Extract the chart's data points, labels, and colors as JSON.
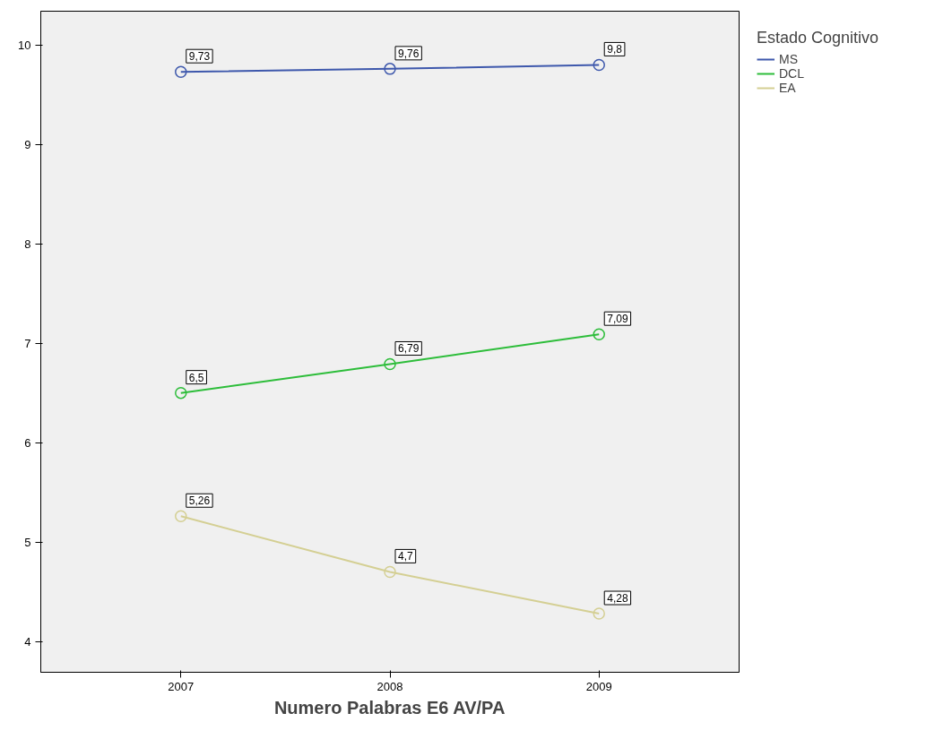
{
  "chart_data": {
    "type": "line",
    "xlabel": "Numero Palabras E6 AV/PA",
    "legend_title": "Estado Cognitivo",
    "legend": "right",
    "marker": "circle",
    "grid": false,
    "data_labels": true,
    "x": [
      2007,
      2008,
      2009
    ],
    "xlim": [
      2006.33,
      2009.67
    ],
    "xticks": [
      2007,
      2008,
      2009
    ],
    "ylim": [
      3.69,
      10.34
    ],
    "yticks": [
      4,
      5,
      6,
      7,
      8,
      9,
      10
    ],
    "series": [
      {
        "name": "MS",
        "color": "#3e58ac",
        "values": [
          9.73,
          9.76,
          9.8
        ],
        "value_labels": [
          "9,73",
          "9,76",
          "9,8"
        ]
      },
      {
        "name": "DCL",
        "color": "#2dbd3a",
        "values": [
          6.5,
          6.79,
          7.09
        ],
        "value_labels": [
          "6,5",
          "6,79",
          "7,09"
        ]
      },
      {
        "name": "EA",
        "color": "#d4cf93",
        "values": [
          5.26,
          4.7,
          4.28
        ],
        "value_labels": [
          "5,26",
          "4,7",
          "4,28"
        ]
      }
    ]
  }
}
